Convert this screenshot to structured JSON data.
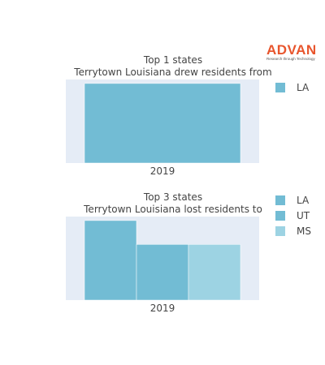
{
  "logo": {
    "name": "ADVAN",
    "tagline": "Research through Technology",
    "color": "#e8552d"
  },
  "colors": {
    "plot_bg": "#e5ecf6",
    "tick_text": "#444444"
  },
  "chart_data": [
    {
      "type": "bar",
      "title_line1": "Top 1 states",
      "title_line2": "Terrytown Louisiana drew residents from",
      "categories": [
        "2019"
      ],
      "series": [
        {
          "name": "LA",
          "values": [
            1
          ],
          "color": "#72bcd4"
        }
      ],
      "ylim": [
        0,
        1.05
      ],
      "legend_position": "right"
    },
    {
      "type": "bar",
      "title_line1": "Top 3 states",
      "title_line2": "Terrytown Louisiana lost residents to",
      "categories": [
        "2019"
      ],
      "series": [
        {
          "name": "LA",
          "values": [
            1
          ],
          "color": "#72bcd4"
        },
        {
          "name": "UT",
          "values": [
            0.7
          ],
          "color": "#72bcd4"
        },
        {
          "name": "MS",
          "values": [
            0.7
          ],
          "color": "#9dd3e3"
        }
      ],
      "ylim": [
        0,
        1.05
      ],
      "legend_position": "right"
    }
  ]
}
